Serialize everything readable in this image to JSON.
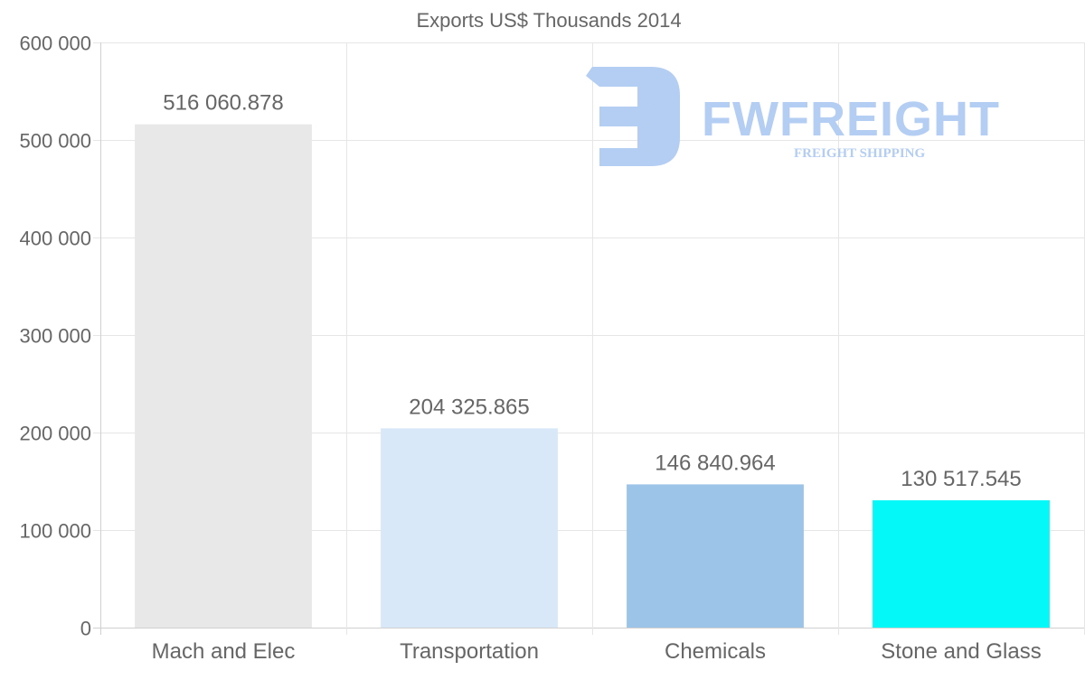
{
  "chart_data": {
    "type": "bar",
    "title": "Exports US$ Thousands 2014",
    "categories": [
      "Mach and Elec",
      "Transportation",
      "Chemicals",
      "Stone and Glass"
    ],
    "values": [
      516060.878,
      204325.865,
      146840.964,
      130517.545
    ],
    "value_labels": [
      "516 060.878",
      "204 325.865",
      "146 840.964",
      "130 517.545"
    ],
    "colors": [
      "#e8e8e8",
      "#d8e8f9",
      "#9bc4e8",
      "#04f8f8"
    ],
    "ylim": [
      0,
      600000
    ],
    "yticks": [
      0,
      100000,
      200000,
      300000,
      400000,
      500000,
      600000
    ],
    "ytick_labels": [
      "0",
      "100 000",
      "200 000",
      "300 000",
      "400 000",
      "500 000",
      "600 000"
    ],
    "xlabel": "",
    "ylabel": "",
    "grid": true,
    "legend": "none"
  },
  "watermark": {
    "brand": "FWFREIGHT",
    "tagline": "FREIGHT SHIPPING",
    "color": "#b3cdf3"
  }
}
